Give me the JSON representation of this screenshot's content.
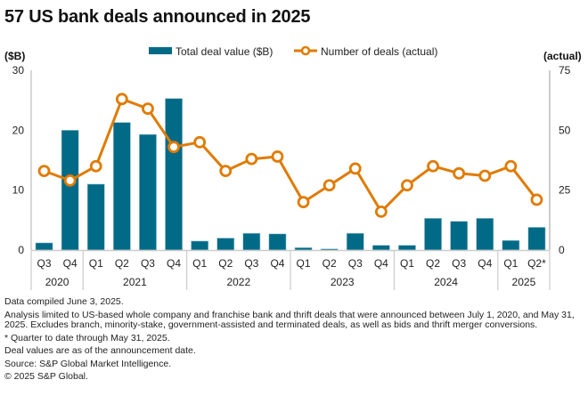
{
  "title": "57 US bank deals announced in 2025",
  "chart_data": {
    "type": "bar+line",
    "title": "57 US bank deals announced in 2025",
    "categories": [
      "Q3",
      "Q4",
      "Q1",
      "Q2",
      "Q3",
      "Q4",
      "Q1",
      "Q2",
      "Q3",
      "Q4",
      "Q1",
      "Q2",
      "Q3",
      "Q4",
      "Q1",
      "Q2",
      "Q3",
      "Q4",
      "Q1",
      "Q2*"
    ],
    "groups": [
      {
        "label": "2020",
        "count": 2
      },
      {
        "label": "2021",
        "count": 4
      },
      {
        "label": "2022",
        "count": 4
      },
      {
        "label": "2023",
        "count": 4
      },
      {
        "label": "2024",
        "count": 4
      },
      {
        "label": "2025",
        "count": 2
      }
    ],
    "series": [
      {
        "name": "Total deal value ($B)",
        "type": "bar",
        "axis": "left",
        "color": "#006a87",
        "values": [
          1.2,
          20.0,
          11.0,
          21.3,
          19.3,
          25.3,
          1.5,
          2.0,
          2.8,
          2.7,
          0.4,
          0.2,
          2.8,
          0.8,
          0.8,
          5.3,
          4.8,
          5.3,
          1.6,
          3.8
        ]
      },
      {
        "name": "Number of deals (actual)",
        "type": "line",
        "axis": "right",
        "color": "#e07b00",
        "values": [
          33,
          29,
          35,
          63,
          59,
          43,
          45,
          33,
          38,
          39,
          20,
          27,
          34,
          16,
          27,
          35,
          32,
          31,
          35,
          21
        ]
      }
    ],
    "left_axis": {
      "label": "($B)",
      "ylim": [
        0,
        30
      ],
      "ticks": [
        "0",
        "10",
        "20",
        "30"
      ]
    },
    "right_axis": {
      "label": "(actual)",
      "ylim": [
        0,
        75
      ],
      "ticks": [
        "0",
        "25",
        "50",
        "75"
      ]
    },
    "legend": {
      "position": "top-center"
    },
    "grid": false
  },
  "notes": [
    "Data compiled June 3, 2025.",
    "Analysis limited to US-based whole company and franchise bank and thrift deals that were announced between July 1, 2020, and May 31, 2025. Excludes branch, minority-stake, government-assisted and terminated deals, as well as bids and thrift merger conversions.",
    "* Quarter to date through May 31, 2025.",
    "Deal values are as of the announcement date.",
    "Source: S&P Global Market Intelligence.",
    "© 2025 S&P Global."
  ]
}
